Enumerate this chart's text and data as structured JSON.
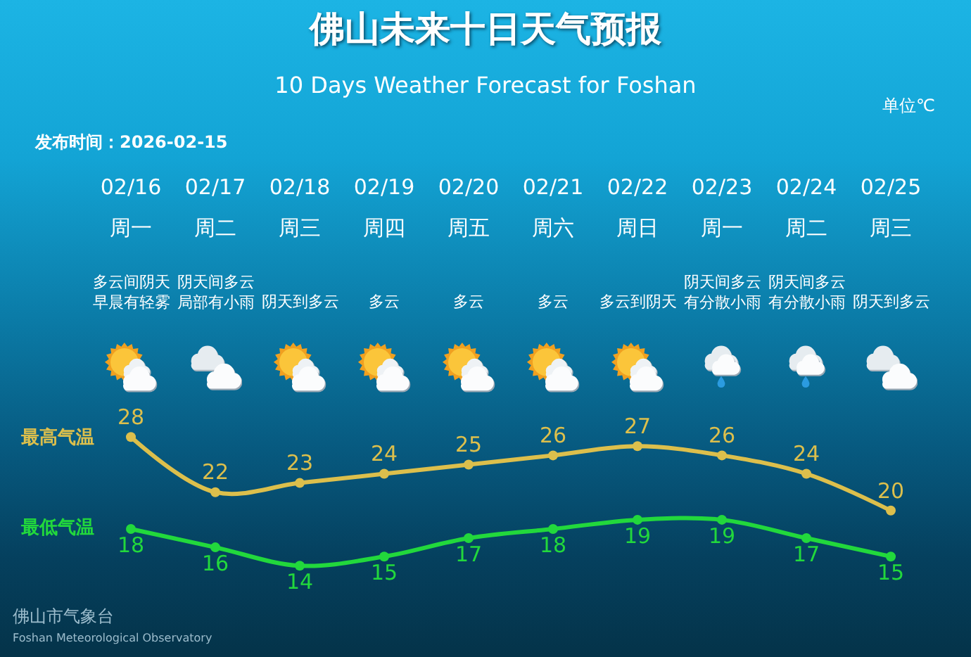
{
  "chart_data": {
    "type": "line",
    "title": "佛山未来十日天气预报",
    "subtitle": "10 Days Weather Forecast for Foshan",
    "categories": [
      "02/16\n周一",
      "02/17\n周二",
      "02/18\n周三",
      "02/19\n周四",
      "02/20\n周五",
      "02/21\n周六",
      "02/22\n周日",
      "02/23\n周一",
      "02/24\n周二",
      "02/25\n周三"
    ],
    "series": [
      {
        "name": "最高气温",
        "color": "#dcbf4c",
        "values": [
          28,
          22,
          23,
          24,
          25,
          26,
          27,
          26,
          24,
          20
        ]
      },
      {
        "name": "最低气温",
        "color": "#22d83c",
        "values": [
          18,
          16,
          14,
          15,
          17,
          18,
          19,
          19,
          17,
          15
        ]
      }
    ],
    "data_labels": true,
    "marker": "circle",
    "line_style": "solid",
    "legend": "left",
    "annotations": [
      "单位℃",
      "发布时间：2026-02-15",
      "佛山市气象台",
      "Foshan Meteorological Observatory",
      "多云间阴天早晨有轻雾",
      "阴天间多云局部有小雨",
      "阴天到多云",
      "多云",
      "多云",
      "多云",
      "多云到阴天",
      "阴天间多云有分散小雨",
      "阴天间多云有分散小雨",
      "阴天到多云"
    ]
  }
}
